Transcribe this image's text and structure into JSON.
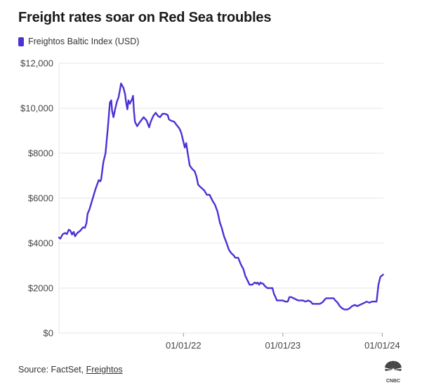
{
  "title": "Freight rates soar on Red Sea troubles",
  "legend": {
    "label": "Freightos Baltic Index (USD)",
    "color": "#4b32d6"
  },
  "source": {
    "prefix": "Source: FactSet, ",
    "link": "Freightos"
  },
  "logo": {
    "icon": "cnbc-peacock-icon",
    "text": "CNBC"
  },
  "chart_data": {
    "type": "line",
    "title": "Freight rates soar on Red Sea troubles",
    "xlabel": "",
    "ylabel": "",
    "ylim": [
      0,
      12000
    ],
    "xlim": [
      "2020-10-01",
      "2024-01-05"
    ],
    "y_ticks": [
      {
        "value": 0,
        "label": "$0"
      },
      {
        "value": 2000,
        "label": "$2000"
      },
      {
        "value": 4000,
        "label": "$4000"
      },
      {
        "value": 6000,
        "label": "$6000"
      },
      {
        "value": 8000,
        "label": "$8000"
      },
      {
        "value": 10000,
        "label": "$10,000"
      },
      {
        "value": 12000,
        "label": "$12,000"
      }
    ],
    "x_ticks": [
      {
        "value": "2022-01-01",
        "label": "01/01/22"
      },
      {
        "value": "2023-01-01",
        "label": "01/01/23"
      },
      {
        "value": "2024-01-01",
        "label": "01/01/24"
      }
    ],
    "grid": true,
    "legend_position": "top-left",
    "series": [
      {
        "name": "Freightos Baltic Index (USD)",
        "color": "#4b32d6",
        "points": [
          [
            "2020-10-01",
            4250
          ],
          [
            "2020-10-06",
            4200
          ],
          [
            "2020-10-15",
            4400
          ],
          [
            "2020-10-24",
            4450
          ],
          [
            "2020-10-30",
            4400
          ],
          [
            "2020-11-06",
            4600
          ],
          [
            "2020-11-12",
            4550
          ],
          [
            "2020-11-18",
            4380
          ],
          [
            "2020-11-24",
            4500
          ],
          [
            "2020-11-29",
            4300
          ],
          [
            "2020-12-07",
            4450
          ],
          [
            "2020-12-18",
            4550
          ],
          [
            "2020-12-28",
            4700
          ],
          [
            "2021-01-04",
            4680
          ],
          [
            "2021-01-10",
            4900
          ],
          [
            "2021-01-14",
            5300
          ],
          [
            "2021-01-21",
            5500
          ],
          [
            "2021-02-01",
            5950
          ],
          [
            "2021-02-12",
            6400
          ],
          [
            "2021-02-24",
            6800
          ],
          [
            "2021-03-02",
            6750
          ],
          [
            "2021-03-05",
            6850
          ],
          [
            "2021-03-13",
            7600
          ],
          [
            "2021-03-21",
            8000
          ],
          [
            "2021-03-30",
            9200
          ],
          [
            "2021-04-06",
            10250
          ],
          [
            "2021-04-11",
            10350
          ],
          [
            "2021-04-14",
            9900
          ],
          [
            "2021-04-19",
            9600
          ],
          [
            "2021-04-26",
            10000
          ],
          [
            "2021-05-02",
            10300
          ],
          [
            "2021-05-08",
            10500
          ],
          [
            "2021-05-14",
            10900
          ],
          [
            "2021-05-17",
            11100
          ],
          [
            "2021-05-26",
            10900
          ],
          [
            "2021-06-01",
            10600
          ],
          [
            "2021-06-04",
            10300
          ],
          [
            "2021-06-09",
            9950
          ],
          [
            "2021-06-13",
            10350
          ],
          [
            "2021-06-18",
            10200
          ],
          [
            "2021-06-26",
            10400
          ],
          [
            "2021-06-30",
            10550
          ],
          [
            "2021-07-03",
            9900
          ],
          [
            "2021-07-07",
            9400
          ],
          [
            "2021-07-15",
            9200
          ],
          [
            "2021-07-26",
            9400
          ],
          [
            "2021-08-08",
            9600
          ],
          [
            "2021-08-19",
            9450
          ],
          [
            "2021-08-25",
            9250
          ],
          [
            "2021-08-28",
            9150
          ],
          [
            "2021-09-03",
            9400
          ],
          [
            "2021-09-12",
            9650
          ],
          [
            "2021-09-21",
            9800
          ],
          [
            "2021-09-30",
            9650
          ],
          [
            "2021-10-07",
            9600
          ],
          [
            "2021-10-16",
            9750
          ],
          [
            "2021-10-26",
            9750
          ],
          [
            "2021-11-04",
            9700
          ],
          [
            "2021-11-09",
            9500
          ],
          [
            "2021-11-16",
            9450
          ],
          [
            "2021-11-28",
            9400
          ],
          [
            "2021-12-07",
            9250
          ],
          [
            "2021-12-17",
            9100
          ],
          [
            "2021-12-24",
            8900
          ],
          [
            "2021-12-31",
            8550
          ],
          [
            "2022-01-06",
            8250
          ],
          [
            "2022-01-11",
            8450
          ],
          [
            "2022-01-16",
            8050
          ],
          [
            "2022-01-24",
            7450
          ],
          [
            "2022-02-02",
            7300
          ],
          [
            "2022-02-11",
            7200
          ],
          [
            "2022-02-18",
            6950
          ],
          [
            "2022-02-24",
            6600
          ],
          [
            "2022-03-04",
            6500
          ],
          [
            "2022-03-18",
            6350
          ],
          [
            "2022-03-28",
            6150
          ],
          [
            "2022-04-07",
            6150
          ],
          [
            "2022-04-17",
            5900
          ],
          [
            "2022-04-27",
            5700
          ],
          [
            "2022-05-06",
            5400
          ],
          [
            "2022-05-15",
            4900
          ],
          [
            "2022-05-21",
            4700
          ],
          [
            "2022-05-30",
            4300
          ],
          [
            "2022-06-07",
            4050
          ],
          [
            "2022-06-17",
            3700
          ],
          [
            "2022-06-26",
            3550
          ],
          [
            "2022-07-05",
            3450
          ],
          [
            "2022-07-10",
            3350
          ],
          [
            "2022-07-21",
            3350
          ],
          [
            "2022-07-31",
            3050
          ],
          [
            "2022-08-09",
            2850
          ],
          [
            "2022-08-16",
            2550
          ],
          [
            "2022-08-24",
            2350
          ],
          [
            "2022-09-01",
            2150
          ],
          [
            "2022-09-10",
            2150
          ],
          [
            "2022-09-20",
            2250
          ],
          [
            "2022-09-26",
            2200
          ],
          [
            "2022-09-30",
            2250
          ],
          [
            "2022-10-06",
            2150
          ],
          [
            "2022-10-11",
            2250
          ],
          [
            "2022-10-16",
            2200
          ],
          [
            "2022-10-21",
            2200
          ],
          [
            "2022-10-26",
            2100
          ],
          [
            "2022-11-05",
            2000
          ],
          [
            "2022-11-15",
            2000
          ],
          [
            "2022-11-24",
            2000
          ],
          [
            "2022-11-29",
            1750
          ],
          [
            "2022-12-05",
            1600
          ],
          [
            "2022-12-10",
            1450
          ],
          [
            "2022-12-20",
            1450
          ],
          [
            "2023-01-01",
            1450
          ],
          [
            "2023-01-10",
            1400
          ],
          [
            "2023-01-19",
            1400
          ],
          [
            "2023-01-25",
            1600
          ],
          [
            "2023-02-01",
            1600
          ],
          [
            "2023-02-09",
            1550
          ],
          [
            "2023-02-18",
            1500
          ],
          [
            "2023-02-26",
            1450
          ],
          [
            "2023-03-07",
            1450
          ],
          [
            "2023-03-16",
            1450
          ],
          [
            "2023-03-25",
            1400
          ],
          [
            "2023-04-04",
            1450
          ],
          [
            "2023-04-13",
            1400
          ],
          [
            "2023-04-20",
            1300
          ],
          [
            "2023-04-29",
            1300
          ],
          [
            "2023-05-08",
            1300
          ],
          [
            "2023-05-17",
            1300
          ],
          [
            "2023-05-24",
            1350
          ],
          [
            "2023-05-29",
            1400
          ],
          [
            "2023-06-04",
            1500
          ],
          [
            "2023-06-10",
            1550
          ],
          [
            "2023-06-19",
            1550
          ],
          [
            "2023-06-28",
            1550
          ],
          [
            "2023-07-06",
            1550
          ],
          [
            "2023-07-13",
            1450
          ],
          [
            "2023-07-21",
            1350
          ],
          [
            "2023-07-29",
            1200
          ],
          [
            "2023-08-07",
            1100
          ],
          [
            "2023-08-15",
            1050
          ],
          [
            "2023-08-26",
            1050
          ],
          [
            "2023-09-03",
            1100
          ],
          [
            "2023-09-12",
            1200
          ],
          [
            "2023-09-22",
            1250
          ],
          [
            "2023-10-01",
            1200
          ],
          [
            "2023-10-10",
            1250
          ],
          [
            "2023-10-19",
            1300
          ],
          [
            "2023-10-28",
            1350
          ],
          [
            "2023-11-05",
            1400
          ],
          [
            "2023-11-15",
            1350
          ],
          [
            "2023-11-24",
            1400
          ],
          [
            "2023-11-30",
            1400
          ],
          [
            "2023-12-06",
            1400
          ],
          [
            "2023-12-11",
            1400
          ],
          [
            "2023-12-18",
            2150
          ],
          [
            "2023-12-25",
            2500
          ],
          [
            "2024-01-04",
            2600
          ]
        ]
      }
    ]
  }
}
